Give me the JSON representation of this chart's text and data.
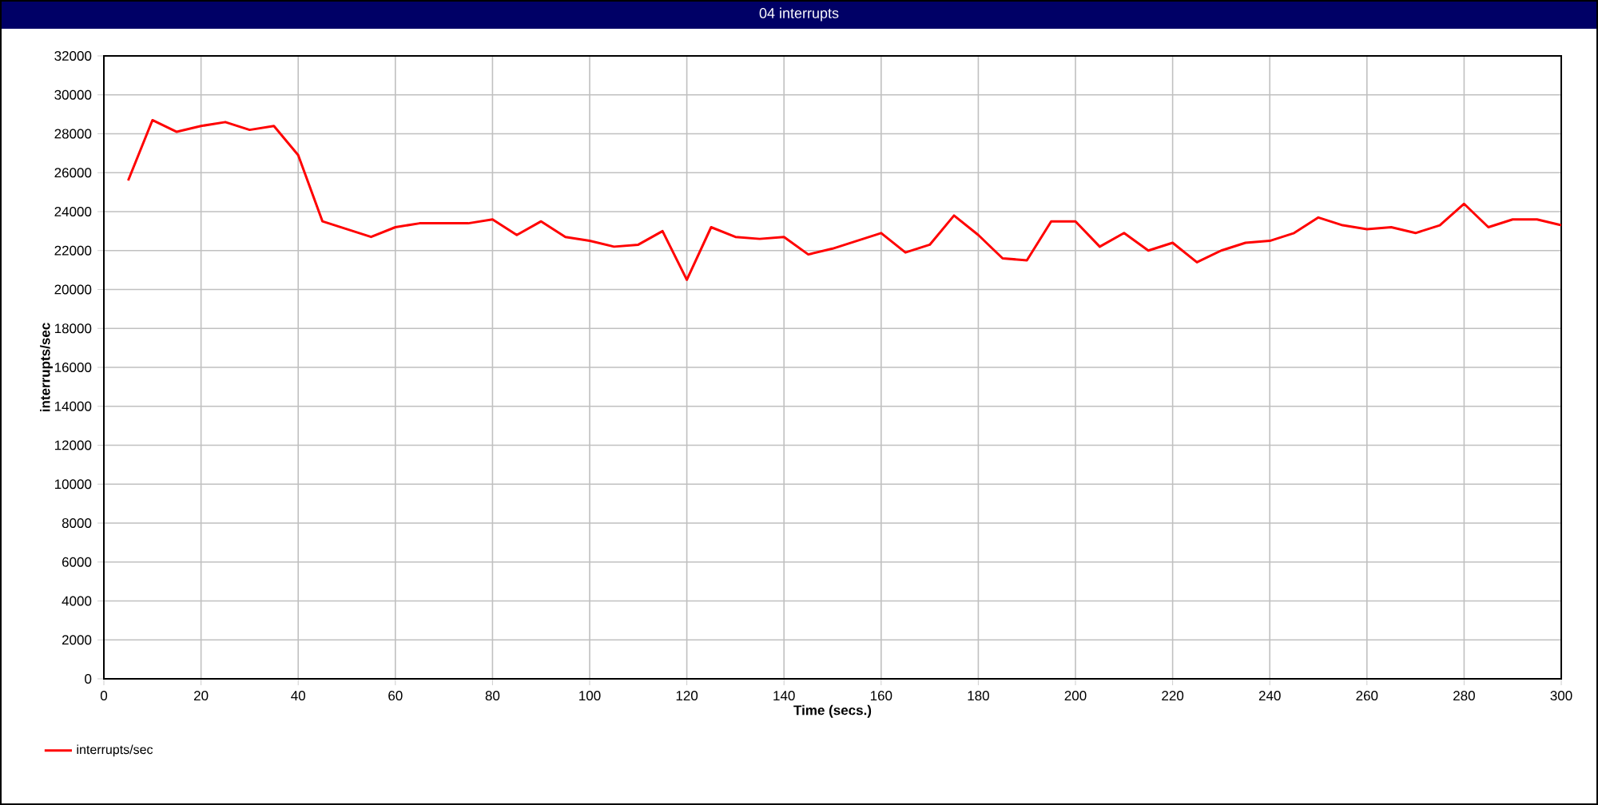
{
  "chart_data": {
    "type": "line",
    "title": "04 interrupts",
    "xlabel": "Time (secs.)",
    "ylabel": "interrupts/sec",
    "x": [
      5,
      10,
      15,
      20,
      25,
      30,
      35,
      40,
      45,
      50,
      55,
      60,
      65,
      70,
      75,
      80,
      85,
      90,
      95,
      100,
      105,
      110,
      115,
      120,
      125,
      130,
      135,
      140,
      145,
      150,
      155,
      160,
      165,
      170,
      175,
      180,
      185,
      190,
      195,
      200,
      205,
      210,
      215,
      220,
      225,
      230,
      235,
      240,
      245,
      250,
      255,
      260,
      265,
      270,
      275,
      280,
      285,
      290,
      295,
      300
    ],
    "series": [
      {
        "name": "interrupts/sec",
        "color": "#ff0000",
        "values": [
          25600,
          28700,
          28100,
          28400,
          28600,
          28200,
          28400,
          26900,
          23500,
          23100,
          22700,
          23200,
          23400,
          23400,
          23400,
          23600,
          22800,
          23500,
          22700,
          22500,
          22200,
          22300,
          23000,
          20500,
          23200,
          22700,
          22600,
          22700,
          21800,
          22100,
          22500,
          22900,
          21900,
          22300,
          23800,
          22800,
          21600,
          21500,
          23500,
          23500,
          22200,
          22900,
          22000,
          22400,
          21400,
          22000,
          22400,
          22500,
          22900,
          23700,
          23300,
          23100,
          23200,
          22900,
          23300,
          24400,
          23200,
          23600,
          23600,
          23300
        ]
      }
    ],
    "xlim": [
      0,
      300
    ],
    "ylim": [
      0,
      32000
    ],
    "xticks": [
      0,
      20,
      40,
      60,
      80,
      100,
      120,
      140,
      160,
      180,
      200,
      220,
      240,
      260,
      280,
      300
    ],
    "yticks": [
      0,
      2000,
      4000,
      6000,
      8000,
      10000,
      12000,
      14000,
      16000,
      18000,
      20000,
      22000,
      24000,
      26000,
      28000,
      30000,
      32000
    ],
    "grid": true,
    "legend": "bottom left",
    "marker": "none",
    "line_style": "solid"
  }
}
